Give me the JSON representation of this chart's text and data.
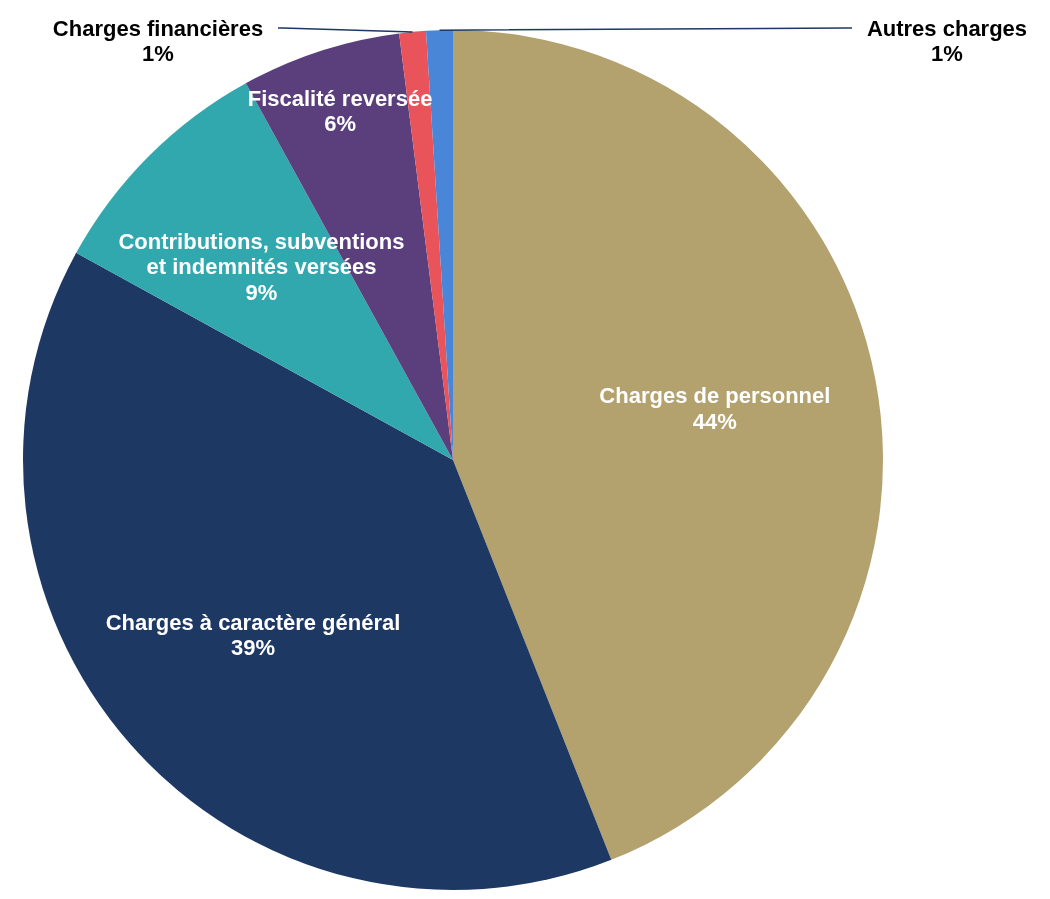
{
  "chart_data": {
    "type": "pie",
    "categories": [
      "Charges de personnel",
      "Charges à caractère général",
      "Contributions, subventions et indemnités versées",
      "Fiscalité reversée",
      "Charges financières",
      "Autres charges"
    ],
    "values": [
      44,
      39,
      9,
      6,
      1,
      1
    ],
    "value_labels": [
      "44%",
      "39%",
      "9%",
      "6%",
      "1%",
      "1%"
    ],
    "colors": [
      "#b3a26e",
      "#1e3864",
      "#31a8ad",
      "#5a3f7c",
      "#e8545a",
      "#4a86d8"
    ]
  }
}
